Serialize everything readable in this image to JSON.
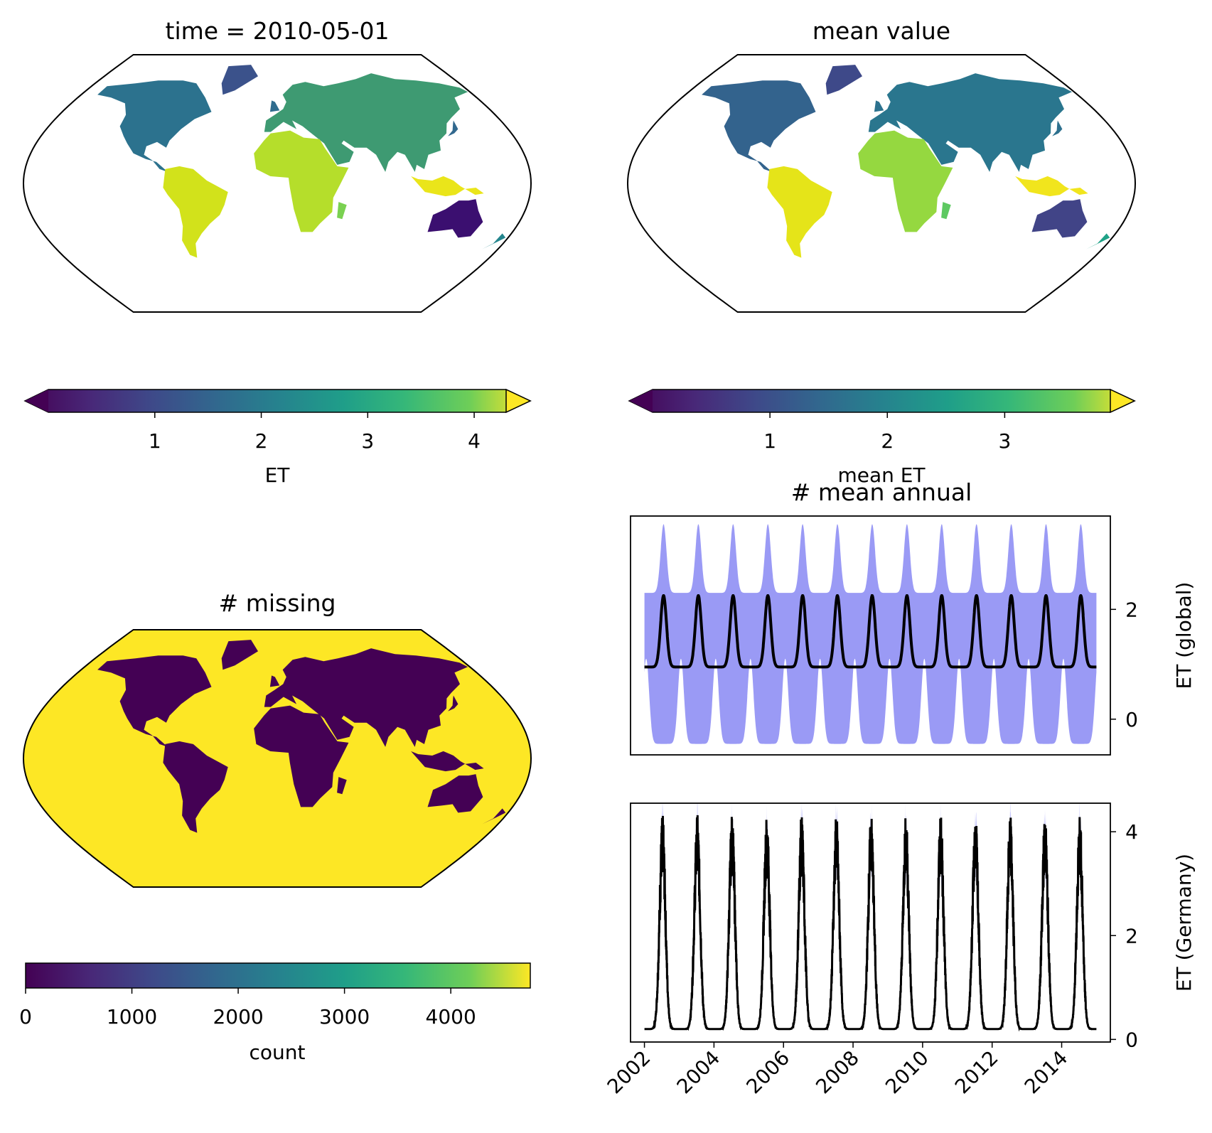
{
  "chart_data": [
    {
      "type": "heatmap",
      "panel": "map-et-snapshot",
      "title": "time = 2010-05-01",
      "projection": "Robinson",
      "colormap": "viridis",
      "colorbar": {
        "label": "ET",
        "ticks": [
          "1",
          "2",
          "3",
          "4"
        ],
        "range": [
          0,
          4.3
        ],
        "extend": "both"
      }
    },
    {
      "type": "heatmap",
      "panel": "map-mean-value",
      "title": "mean value",
      "projection": "Robinson",
      "colormap": "viridis",
      "colorbar": {
        "label": "mean ET",
        "ticks": [
          "1",
          "2",
          "3"
        ],
        "range": [
          0,
          3.9
        ],
        "extend": "both"
      }
    },
    {
      "type": "heatmap",
      "panel": "map-missing",
      "title": "# missing",
      "projection": "Robinson",
      "colormap": "viridis",
      "land_value": 0,
      "ocean_value": 4748,
      "colorbar": {
        "label": "count",
        "ticks": [
          "0",
          "1000",
          "2000",
          "3000",
          "4000"
        ],
        "range": [
          0,
          4748
        ],
        "extend": "neither"
      }
    },
    {
      "type": "line",
      "panel": "ts-global",
      "title": "# mean annual",
      "ylabel": "ET (global)",
      "yticks": [
        "0",
        "2"
      ],
      "ylim": [
        -0.65,
        3.7
      ],
      "xlim": [
        2001.6,
        2015.4
      ],
      "series": [
        {
          "name": "mean",
          "color": "#000000",
          "period_years": 1,
          "min": 0.95,
          "max": 2.25,
          "peak_phase": 0.55
        },
        {
          "name": "std band upper",
          "color": "#9a9af5",
          "min": 2.3,
          "max": 3.55
        },
        {
          "name": "std band lower",
          "color": "#9a9af5",
          "min": -0.45,
          "max": 1.1
        }
      ],
      "x_start": 2002.0,
      "x_end": 2015.0
    },
    {
      "type": "line",
      "panel": "ts-germany",
      "ylabel": "ET (Germany)",
      "yticks": [
        "0",
        "2",
        "4"
      ],
      "ylim": [
        -0.05,
        4.55
      ],
      "xlim": [
        2001.6,
        2015.4
      ],
      "xticks": [
        "2002",
        "2004",
        "2006",
        "2008",
        "2010",
        "2012",
        "2014"
      ],
      "series": [
        {
          "name": "mean",
          "color": "#000000",
          "min": 0.2,
          "max": 3.8,
          "peak_phase": 0.52
        }
      ],
      "x_start": 2002.0,
      "x_end": 2015.0
    }
  ]
}
